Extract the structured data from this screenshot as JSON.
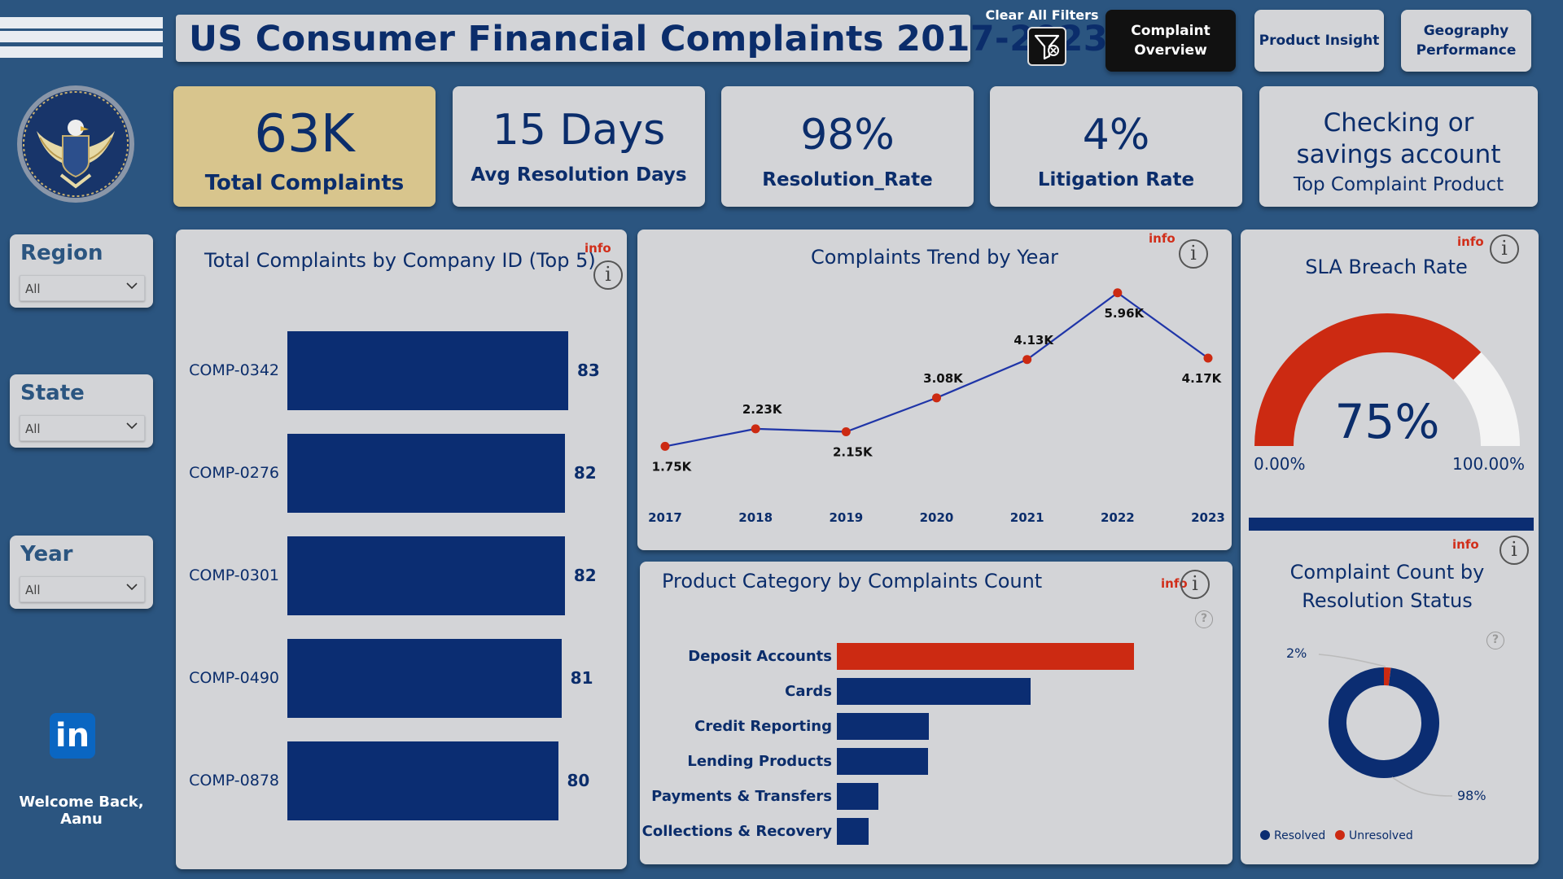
{
  "title": "US Consumer Financial Complaints  2017-2023",
  "clear_filters": "Clear All Filters",
  "nav": {
    "overview": "Complaint Overview",
    "product": "Product Insight",
    "geography": "Geography Performance"
  },
  "kpis": [
    {
      "value": "63K",
      "label": "Total Complaints"
    },
    {
      "value": "15 Days",
      "label": "Avg Resolution Days"
    },
    {
      "value": "98%",
      "label": "Resolution_Rate"
    },
    {
      "value": "4%",
      "label": "Litigation Rate"
    },
    {
      "value": "Checking or savings account",
      "label": "Top Complaint Product"
    }
  ],
  "filters": {
    "region": {
      "title": "Region",
      "value": "All"
    },
    "state": {
      "title": "State",
      "value": "All"
    },
    "year": {
      "title": "Year",
      "value": "All"
    }
  },
  "welcome": "Welcome Back, Aanu",
  "linkedin": "in",
  "info_label": "info",
  "info_symbol": "i",
  "help_symbol": "?",
  "colors": {
    "navy": "#0b2d72",
    "red": "#cc2a12",
    "card": "#d3d4d7",
    "bg": "#2b5580",
    "gold": "#d8c58d"
  },
  "chart_data": [
    {
      "type": "bar",
      "title": "Total Complaints by Company ID (Top 5)",
      "categories": [
        "COMP-0342",
        "COMP-0276",
        "COMP-0301",
        "COMP-0490",
        "COMP-0878"
      ],
      "values": [
        83,
        82,
        82,
        81,
        80
      ]
    },
    {
      "type": "line",
      "title": "Complaints Trend by Year",
      "x": [
        "2017",
        "2018",
        "2019",
        "2020",
        "2021",
        "2022",
        "2023"
      ],
      "values": [
        1750,
        2230,
        2150,
        3080,
        4130,
        5960,
        4170
      ],
      "labels": [
        "1.75K",
        "2.23K",
        "2.15K",
        "3.08K",
        "4.13K",
        "5.96K",
        "4.17K"
      ]
    },
    {
      "type": "gauge",
      "title": "SLA Breach Rate",
      "value": 0.75,
      "value_label": "75%",
      "min_label": "0.00%",
      "max_label": "100.00%"
    },
    {
      "type": "bar",
      "title": "Product Category by Complaints Count",
      "categories": [
        "Deposit Accounts",
        "Cards",
        "Credit Reporting",
        "Lending Products",
        "Payments & Transfers",
        "Collections & Recovery"
      ],
      "values": [
        24.2,
        15.8,
        7.5,
        7.4,
        3.4,
        2.6
      ]
    },
    {
      "type": "pie",
      "title": "Complaint Count by Resolution Status",
      "segments": [
        {
          "name": "Resolved",
          "value": 98,
          "label": "98%"
        },
        {
          "name": "Unresolved",
          "value": 2,
          "label": "2%"
        }
      ]
    }
  ]
}
